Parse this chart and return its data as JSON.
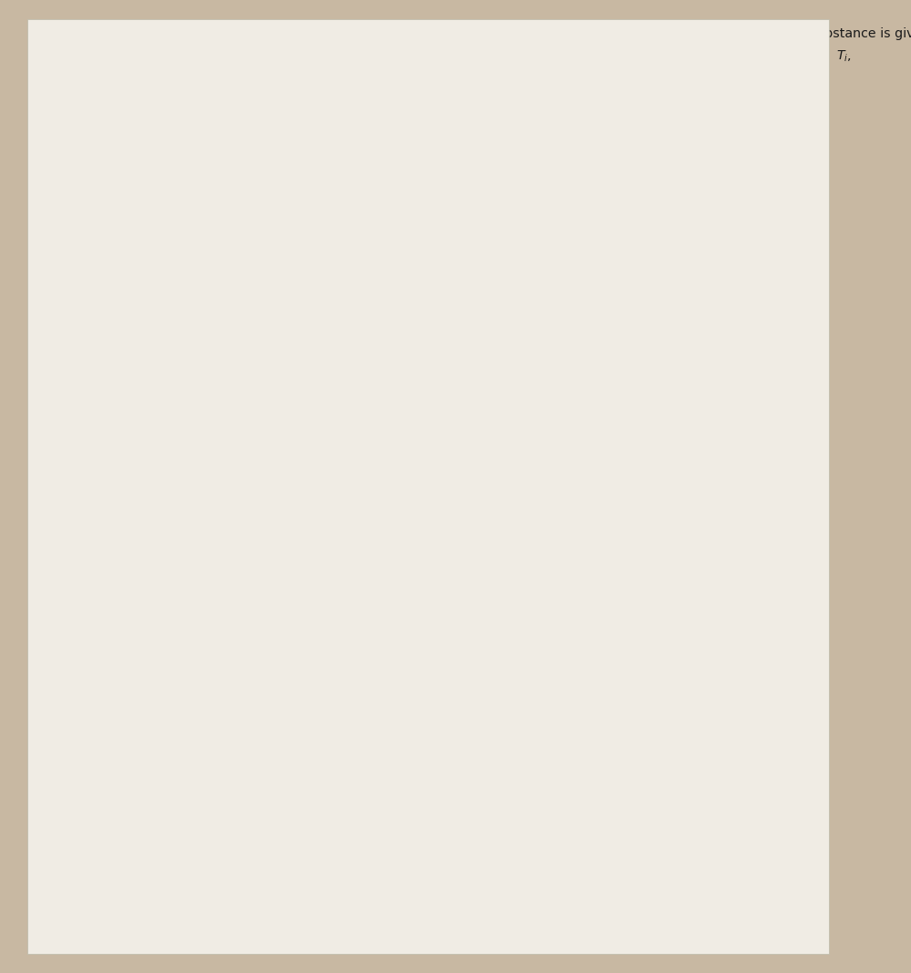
{
  "bg_color": "#c8b8a2",
  "paper_color": "#f0ece4",
  "text_color": "#1a1a1a",
  "figsize": [
    9.99,
    10.67
  ],
  "dpi": 100
}
